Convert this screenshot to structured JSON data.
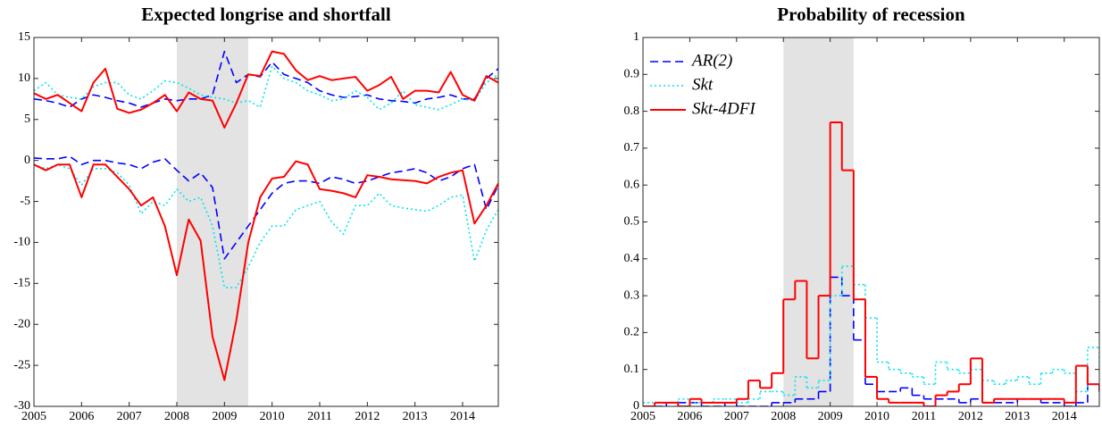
{
  "chart_data": [
    {
      "type": "line",
      "title": "Expected longrise and shortfall",
      "x": [
        2005,
        2005.25,
        2005.5,
        2005.75,
        2006,
        2006.25,
        2006.5,
        2006.75,
        2007,
        2007.25,
        2007.5,
        2007.75,
        2008,
        2008.25,
        2008.5,
        2008.75,
        2009,
        2009.25,
        2009.5,
        2009.75,
        2010,
        2010.25,
        2010.5,
        2010.75,
        2011,
        2011.25,
        2011.5,
        2011.75,
        2012,
        2012.25,
        2012.5,
        2012.75,
        2013,
        2013.25,
        2013.5,
        2013.75,
        2014,
        2014.25,
        2014.5,
        2014.75
      ],
      "series": [
        {
          "color": "#0000ff",
          "style": "dashed",
          "values": [
            7.5,
            7.3,
            7,
            6.5,
            7.5,
            8,
            7.7,
            7.3,
            7,
            6.5,
            7,
            7.5,
            7.3,
            7.5,
            7.5,
            8,
            13.3,
            9.5,
            10.5,
            10.2,
            12,
            10.5,
            10,
            9.5,
            8.5,
            8,
            7.7,
            7.8,
            8,
            7.5,
            7.3,
            7.2,
            7,
            7.5,
            7.7,
            8,
            7.5,
            7.5,
            10,
            11.2
          ]
        },
        {
          "color": "#00e5ee",
          "style": "dotted",
          "values": [
            8.5,
            9.5,
            8,
            7.7,
            7.5,
            9,
            9.5,
            9.5,
            8,
            7.5,
            8.5,
            9.7,
            9.5,
            8.8,
            8,
            7.7,
            7.5,
            7,
            7.3,
            6.5,
            11.5,
            10,
            9.5,
            8.5,
            8,
            7.3,
            7.5,
            8.5,
            7.7,
            6.2,
            7,
            8.5,
            6.8,
            6.5,
            6.2,
            6.8,
            7.5,
            7.3,
            9.5,
            10.5
          ]
        },
        {
          "color": "#ff0000",
          "style": "solid",
          "values": [
            8.2,
            7.5,
            8,
            7,
            6,
            9.5,
            11.2,
            6.3,
            5.8,
            6.2,
            7,
            8,
            6,
            8.3,
            7.5,
            7.3,
            4,
            7,
            10.5,
            10.3,
            13.3,
            13,
            11,
            9.8,
            10.3,
            9.8,
            10,
            10.2,
            8.5,
            9.2,
            10.2,
            7.5,
            8.5,
            8.5,
            8.3,
            10.8,
            8,
            7.3,
            10.3,
            9.5
          ]
        },
        {
          "color": "#0000ff",
          "style": "dashed",
          "values": [
            0.3,
            0.2,
            0.2,
            0.5,
            -0.5,
            0,
            0,
            -0.3,
            -0.5,
            -1,
            -0.2,
            0.2,
            -1.2,
            -2.5,
            -1.5,
            -3.3,
            -12,
            -10,
            -8,
            -6,
            -4,
            -2.8,
            -2.5,
            -2.5,
            -2.8,
            -2,
            -2.3,
            -2.8,
            -2.5,
            -2,
            -1.5,
            -1.3,
            -1,
            -1.5,
            -2.5,
            -2,
            -1,
            -0.5,
            -6,
            -3
          ]
        },
        {
          "color": "#00e5ee",
          "style": "dotted",
          "values": [
            -0.5,
            -1,
            -0.5,
            -1,
            -3,
            -1,
            -1,
            -1.5,
            -3,
            -6.5,
            -5,
            -5.5,
            -3.5,
            -5,
            -4.5,
            -8,
            -15.5,
            -15.5,
            -13,
            -10,
            -8,
            -8,
            -6,
            -5.5,
            -5,
            -7.5,
            -9,
            -5.5,
            -5.5,
            -4,
            -5.5,
            -5.8,
            -6,
            -6.2,
            -5.5,
            -4.5,
            -4.2,
            -12.3,
            -8.5,
            -6
          ]
        },
        {
          "color": "#ff0000",
          "style": "solid",
          "values": [
            -0.5,
            -1.2,
            -0.5,
            -0.5,
            -4.5,
            -0.5,
            -0.5,
            -2,
            -3.5,
            -5.5,
            -4.5,
            -8,
            -14,
            -7.2,
            -9.8,
            -21.5,
            -26.8,
            -19.5,
            -10,
            -4.5,
            -2.2,
            -2,
            -0.1,
            -0.5,
            -3.5,
            -3.7,
            -4,
            -4.5,
            -1.8,
            -2,
            -2.3,
            -2.4,
            -2.5,
            -2.8,
            -2,
            -1.5,
            -1.2,
            -7.7,
            -5.5,
            -2.8
          ]
        }
      ],
      "shade": [
        2008,
        2009.5
      ],
      "shade_color": "#e3e3e3",
      "xlim": [
        2005,
        2014.75
      ],
      "xticks": [
        2005,
        2006,
        2007,
        2008,
        2009,
        2010,
        2011,
        2012,
        2013,
        2014
      ],
      "ylim": [
        -30,
        15
      ],
      "yticks": [
        -30,
        -25,
        -20,
        -15,
        -10,
        -5,
        0,
        5,
        10,
        15
      ]
    },
    {
      "type": "step",
      "title": "Probability of recession",
      "x": [
        2005,
        2005.25,
        2005.5,
        2005.75,
        2006,
        2006.25,
        2006.5,
        2006.75,
        2007,
        2007.25,
        2007.5,
        2007.75,
        2008,
        2008.25,
        2008.5,
        2008.75,
        2009,
        2009.25,
        2009.5,
        2009.75,
        2010,
        2010.25,
        2010.5,
        2010.75,
        2011,
        2011.25,
        2011.5,
        2011.75,
        2012,
        2012.25,
        2012.5,
        2012.75,
        2013,
        2013.25,
        2013.5,
        2013.75,
        2014,
        2014.25,
        2014.5,
        2014.75
      ],
      "series": [
        {
          "name": "AR(2)",
          "color": "#0000ff",
          "style": "dashed",
          "values": [
            0,
            0,
            0.01,
            0.01,
            0.01,
            0,
            0,
            0.01,
            0,
            0,
            0,
            0.01,
            0.01,
            0.02,
            0.02,
            0.04,
            0.35,
            0.3,
            0.18,
            0.06,
            0.04,
            0.04,
            0.05,
            0.03,
            0.02,
            0.02,
            0.02,
            0.01,
            0.02,
            0.01,
            0.01,
            0.01,
            0.02,
            0.02,
            0.01,
            0.01,
            0,
            0.01,
            0.06,
            0.04
          ]
        },
        {
          "name": "Skt",
          "color": "#00e5ee",
          "style": "dotted",
          "values": [
            0.01,
            0.01,
            0.01,
            0.02,
            0.01,
            0.01,
            0.02,
            0.02,
            0.01,
            0.02,
            0.04,
            0.04,
            0.03,
            0.08,
            0.05,
            0.07,
            0.3,
            0.38,
            0.33,
            0.24,
            0.12,
            0.1,
            0.09,
            0.08,
            0.06,
            0.12,
            0.1,
            0.09,
            0.1,
            0.07,
            0.06,
            0.07,
            0.08,
            0.06,
            0.09,
            0.1,
            0.09,
            0.04,
            0.16,
            0.1
          ]
        },
        {
          "name": "Skt-4DFI",
          "color": "#ff0000",
          "style": "solid",
          "values": [
            0,
            0.01,
            0.01,
            0,
            0.02,
            0.01,
            0.01,
            0.01,
            0.02,
            0.07,
            0.05,
            0.09,
            0.29,
            0.34,
            0.13,
            0.3,
            0.77,
            0.64,
            0.29,
            0.08,
            0.02,
            0.01,
            0.01,
            0.01,
            0,
            0.03,
            0.04,
            0.06,
            0.13,
            0.01,
            0.02,
            0.02,
            0.02,
            0.02,
            0.02,
            0.02,
            0.01,
            0.11,
            0.06,
            0.04
          ]
        }
      ],
      "shade": [
        2008,
        2009.5
      ],
      "shade_color": "#e3e3e3",
      "legend": "upper left",
      "xlim": [
        2005,
        2014.75
      ],
      "xticks": [
        2005,
        2006,
        2007,
        2008,
        2009,
        2010,
        2011,
        2012,
        2013,
        2014
      ],
      "ylim": [
        0,
        1
      ],
      "yticks": [
        0,
        0.1,
        0.2,
        0.3,
        0.4,
        0.5,
        0.6,
        0.7,
        0.8,
        0.9,
        1
      ]
    }
  ]
}
